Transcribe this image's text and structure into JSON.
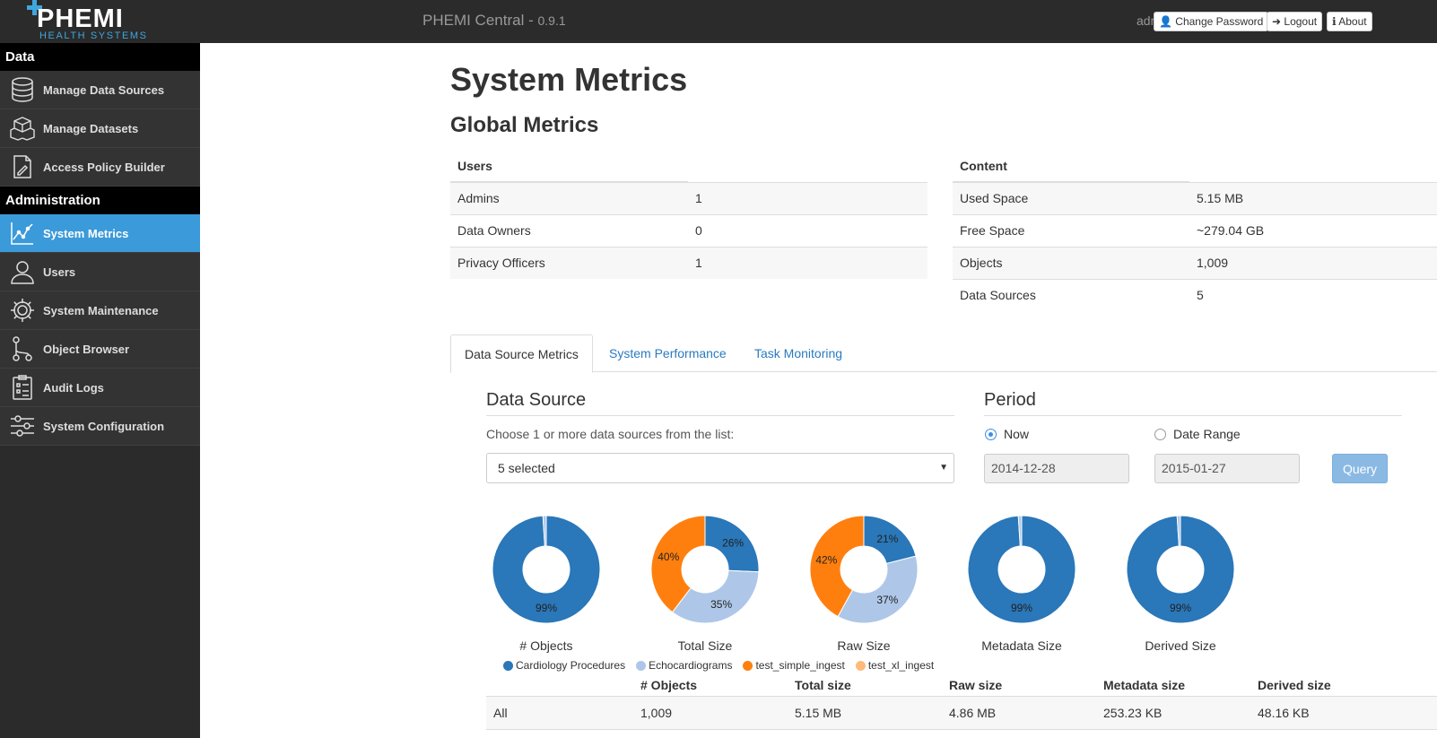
{
  "brand": {
    "name": "PHEMI",
    "tagline": "HEALTH SYSTEMS"
  },
  "sidebar": {
    "sections": [
      {
        "title": "Data",
        "items": [
          {
            "label": "Manage Data Sources",
            "icon": "database-icon"
          },
          {
            "label": "Manage Datasets",
            "icon": "cubes-icon"
          },
          {
            "label": "Access Policy Builder",
            "icon": "policy-icon"
          }
        ]
      },
      {
        "title": "Administration",
        "items": [
          {
            "label": "System Metrics",
            "icon": "line-chart-icon",
            "active": true
          },
          {
            "label": "Users",
            "icon": "user-icon"
          },
          {
            "label": "System Maintenance",
            "icon": "gear-icon"
          },
          {
            "label": "Object Browser",
            "icon": "tree-icon"
          },
          {
            "label": "Audit Logs",
            "icon": "clipboard-icon"
          },
          {
            "label": "System Configuration",
            "icon": "sliders-icon"
          }
        ]
      }
    ]
  },
  "topbar": {
    "title": "PHEMI Central - ",
    "version": "0.9.1",
    "user": "admin",
    "change_password": "Change Password",
    "logout": "Logout",
    "about": "About"
  },
  "page": {
    "title": "System Metrics",
    "global_title": "Global Metrics"
  },
  "users_table": {
    "header": "Users",
    "rows": [
      {
        "label": "Admins",
        "value": "1"
      },
      {
        "label": "Data Owners",
        "value": "0"
      },
      {
        "label": "Privacy Officers",
        "value": "1"
      }
    ]
  },
  "content_table": {
    "header": "Content",
    "rows": [
      {
        "label": "Used Space",
        "value": "5.15 MB"
      },
      {
        "label": "Free Space",
        "value": "~279.04 GB"
      },
      {
        "label": "Objects",
        "value": "1,009"
      },
      {
        "label": "Data Sources",
        "value": "5"
      }
    ]
  },
  "tabs": [
    "Data Source Metrics",
    "System Performance",
    "Task Monitoring"
  ],
  "data_source": {
    "title": "Data Source",
    "choose_label": "Choose 1 or more data sources from the list:",
    "selected": "5 selected"
  },
  "period": {
    "title": "Period",
    "now_label": "Now",
    "range_label": "Date Range",
    "from": "2014-12-28",
    "to": "2015-01-27",
    "query": "Query"
  },
  "colors": {
    "Cardiology Procedures": "#2a77b9",
    "Echocardiograms": "#aec7e8",
    "test_simple_ingest": "#ff7f0e",
    "test_xl_ingest": "#ffbb78"
  },
  "chart_data": [
    {
      "type": "pie",
      "title": "# Objects",
      "labels": [
        "Cardiology Procedures",
        "Echocardiograms"
      ],
      "values": [
        99,
        1
      ],
      "slice_labels": [
        "99%",
        ""
      ]
    },
    {
      "type": "pie",
      "title": "Total Size",
      "labels": [
        "Cardiology Procedures",
        "Echocardiograms",
        "test_simple_ingest"
      ],
      "values": [
        26,
        35,
        40
      ],
      "slice_labels": [
        "26%",
        "35%",
        "40%"
      ]
    },
    {
      "type": "pie",
      "title": "Raw Size",
      "labels": [
        "Cardiology Procedures",
        "Echocardiograms",
        "test_simple_ingest"
      ],
      "values": [
        21,
        37,
        42
      ],
      "slice_labels": [
        "21%",
        "37%",
        "42%"
      ]
    },
    {
      "type": "pie",
      "title": "Metadata Size",
      "labels": [
        "Cardiology Procedures",
        "Echocardiograms"
      ],
      "values": [
        99,
        1
      ],
      "slice_labels": [
        "99%",
        ""
      ]
    },
    {
      "type": "pie",
      "title": "Derived Size",
      "labels": [
        "Cardiology Procedures",
        "Echocardiograms"
      ],
      "values": [
        99,
        1
      ],
      "slice_labels": [
        "99%",
        ""
      ]
    }
  ],
  "legend": [
    "Cardiology Procedures",
    "Echocardiograms",
    "test_simple_ingest",
    "test_xl_ingest"
  ],
  "ds_table": {
    "columns": [
      "",
      "# Objects",
      "Total size",
      "Raw size",
      "Metadata size",
      "Derived size"
    ],
    "rows": [
      [
        "All",
        "1,009",
        "5.15 MB",
        "4.86 MB",
        "253.23 KB",
        "48.16 KB"
      ]
    ]
  }
}
